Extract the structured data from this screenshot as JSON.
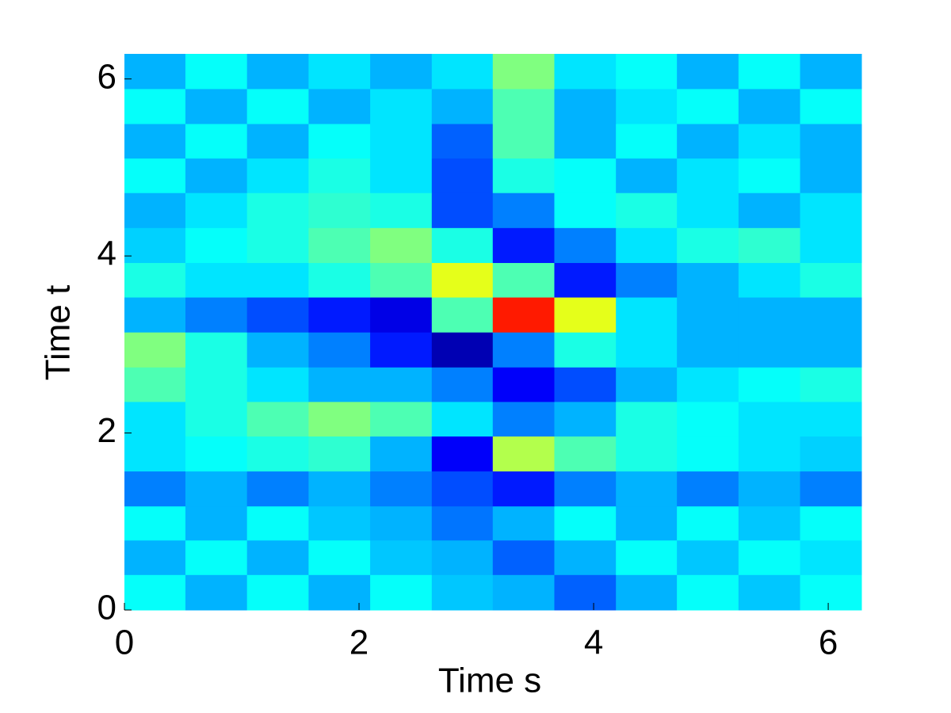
{
  "chart_data": {
    "type": "heatmap",
    "x_label": "Time s",
    "y_label": "Time t",
    "colormap": "jet",
    "clim": [
      0,
      1
    ],
    "x": [
      0.26,
      0.78,
      1.31,
      1.83,
      2.36,
      2.88,
      3.4,
      3.93,
      4.45,
      4.97,
      5.5,
      6.02
    ],
    "y": [
      0.2,
      0.6,
      0.98,
      1.37,
      1.77,
      2.16,
      2.55,
      2.94,
      3.34,
      3.73,
      4.12,
      4.52,
      4.91,
      5.3,
      5.69,
      6.09
    ],
    "values": [
      [
        0.38,
        0.3,
        0.38,
        0.3,
        0.38,
        0.32,
        0.3,
        0.22,
        0.3,
        0.38,
        0.32,
        0.38
      ],
      [
        0.3,
        0.38,
        0.3,
        0.38,
        0.32,
        0.3,
        0.22,
        0.3,
        0.38,
        0.32,
        0.38,
        0.35
      ],
      [
        0.38,
        0.3,
        0.38,
        0.32,
        0.3,
        0.24,
        0.3,
        0.38,
        0.3,
        0.38,
        0.32,
        0.38
      ],
      [
        0.25,
        0.3,
        0.25,
        0.3,
        0.25,
        0.2,
        0.15,
        0.25,
        0.3,
        0.25,
        0.3,
        0.25
      ],
      [
        0.35,
        0.38,
        0.4,
        0.42,
        0.3,
        0.12,
        0.55,
        0.45,
        0.4,
        0.38,
        0.35,
        0.33
      ],
      [
        0.35,
        0.4,
        0.45,
        0.5,
        0.45,
        0.35,
        0.25,
        0.3,
        0.4,
        0.38,
        0.35,
        0.35
      ],
      [
        0.45,
        0.4,
        0.35,
        0.3,
        0.3,
        0.25,
        0.12,
        0.2,
        0.3,
        0.35,
        0.38,
        0.4
      ],
      [
        0.5,
        0.4,
        0.3,
        0.25,
        0.15,
        0.05,
        0.25,
        0.4,
        0.35,
        0.3,
        0.3,
        0.3
      ],
      [
        0.3,
        0.25,
        0.2,
        0.15,
        0.1,
        0.45,
        0.85,
        0.6,
        0.35,
        0.3,
        0.3,
        0.3
      ],
      [
        0.4,
        0.35,
        0.35,
        0.4,
        0.45,
        0.6,
        0.45,
        0.15,
        0.25,
        0.3,
        0.35,
        0.4
      ],
      [
        0.33,
        0.38,
        0.4,
        0.45,
        0.5,
        0.4,
        0.15,
        0.25,
        0.35,
        0.4,
        0.42,
        0.35
      ],
      [
        0.3,
        0.35,
        0.4,
        0.42,
        0.4,
        0.2,
        0.25,
        0.38,
        0.4,
        0.35,
        0.3,
        0.35
      ],
      [
        0.38,
        0.3,
        0.35,
        0.4,
        0.35,
        0.2,
        0.4,
        0.38,
        0.3,
        0.35,
        0.38,
        0.3
      ],
      [
        0.3,
        0.38,
        0.3,
        0.38,
        0.35,
        0.22,
        0.45,
        0.3,
        0.38,
        0.3,
        0.35,
        0.3
      ],
      [
        0.38,
        0.3,
        0.38,
        0.3,
        0.35,
        0.3,
        0.45,
        0.3,
        0.35,
        0.38,
        0.3,
        0.38
      ],
      [
        0.3,
        0.38,
        0.3,
        0.35,
        0.3,
        0.35,
        0.5,
        0.35,
        0.38,
        0.3,
        0.38,
        0.3
      ]
    ],
    "xlim": [
      0,
      6.2832
    ],
    "ylim": [
      0,
      6.2832
    ],
    "xticks": [
      0,
      2,
      4,
      6
    ],
    "yticks": [
      0,
      2,
      4,
      6
    ]
  }
}
